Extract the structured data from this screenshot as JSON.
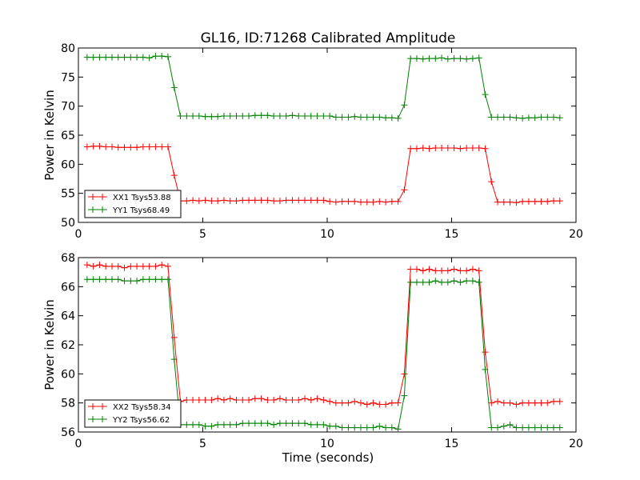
{
  "title": "GL16, ID:71268 Calibrated Amplitude",
  "chart_data": [
    {
      "type": "line",
      "title": "GL16, ID:71268 Calibrated Amplitude",
      "xlabel": "",
      "ylabel": "Power in Kelvin",
      "xlim": [
        0,
        20
      ],
      "ylim": [
        50,
        80
      ],
      "xticks": [
        0,
        5,
        10,
        15,
        20
      ],
      "yticks": [
        50,
        55,
        60,
        65,
        70,
        75,
        80
      ],
      "grid": false,
      "legend": "lower-left",
      "x": [
        0.35,
        0.6,
        0.85,
        1.1,
        1.35,
        1.6,
        1.85,
        2.1,
        2.35,
        2.6,
        2.85,
        3.1,
        3.35,
        3.6,
        3.85,
        4.1,
        4.35,
        4.6,
        4.85,
        5.1,
        5.35,
        5.6,
        5.85,
        6.1,
        6.35,
        6.6,
        6.85,
        7.1,
        7.35,
        7.6,
        7.85,
        8.1,
        8.35,
        8.6,
        8.85,
        9.1,
        9.35,
        9.6,
        9.85,
        10.1,
        10.35,
        10.6,
        10.85,
        11.1,
        11.35,
        11.6,
        11.85,
        12.1,
        12.35,
        12.6,
        12.85,
        13.1,
        13.35,
        13.6,
        13.85,
        14.1,
        14.35,
        14.6,
        14.85,
        15.1,
        15.35,
        15.6,
        15.85,
        16.1,
        16.35,
        16.6,
        16.85,
        17.1,
        17.35,
        17.6,
        17.85,
        18.1,
        18.35,
        18.6,
        18.85,
        19.1,
        19.35
      ],
      "series": [
        {
          "name": "XX1 Tsys53.88",
          "color": "#ff0000",
          "values": [
            63.0,
            63.1,
            63.1,
            63.0,
            63.0,
            62.9,
            62.9,
            62.9,
            62.9,
            63.0,
            63.0,
            63.0,
            63.0,
            63.0,
            58.1,
            53.7,
            53.7,
            53.8,
            53.7,
            53.8,
            53.7,
            53.7,
            53.8,
            53.7,
            53.7,
            53.8,
            53.8,
            53.8,
            53.8,
            53.8,
            53.7,
            53.7,
            53.8,
            53.8,
            53.8,
            53.8,
            53.8,
            53.8,
            53.8,
            53.6,
            53.5,
            53.6,
            53.6,
            53.6,
            53.5,
            53.5,
            53.5,
            53.6,
            53.5,
            53.6,
            53.6,
            55.6,
            62.7,
            62.7,
            62.8,
            62.7,
            62.8,
            62.8,
            62.8,
            62.8,
            62.7,
            62.8,
            62.8,
            62.8,
            62.7,
            57.0,
            53.5,
            53.5,
            53.5,
            53.4,
            53.6,
            53.6,
            53.6,
            53.6,
            53.6,
            53.7,
            53.7
          ]
        },
        {
          "name": "YY1 Tsys68.49",
          "color": "#008000",
          "values": [
            78.4,
            78.4,
            78.4,
            78.4,
            78.4,
            78.4,
            78.4,
            78.4,
            78.4,
            78.4,
            78.3,
            78.6,
            78.6,
            78.5,
            73.2,
            68.3,
            68.3,
            68.3,
            68.3,
            68.2,
            68.2,
            68.2,
            68.3,
            68.3,
            68.3,
            68.3,
            68.3,
            68.4,
            68.4,
            68.4,
            68.3,
            68.3,
            68.3,
            68.4,
            68.3,
            68.3,
            68.3,
            68.3,
            68.3,
            68.3,
            68.1,
            68.1,
            68.1,
            68.2,
            68.1,
            68.1,
            68.1,
            68.1,
            68.0,
            68.0,
            67.9,
            70.2,
            78.2,
            78.2,
            78.1,
            78.2,
            78.2,
            78.3,
            78.1,
            78.2,
            78.2,
            78.1,
            78.2,
            78.3,
            72.0,
            68.1,
            68.1,
            68.1,
            68.1,
            68.0,
            67.9,
            68.0,
            68.0,
            68.1,
            68.1,
            68.1,
            68.0
          ]
        }
      ]
    },
    {
      "type": "line",
      "title": "",
      "xlabel": "Time (seconds)",
      "ylabel": "Power in Kelvin",
      "xlim": [
        0,
        20
      ],
      "ylim": [
        56,
        68
      ],
      "xticks": [
        0,
        5,
        10,
        15,
        20
      ],
      "yticks": [
        56,
        58,
        60,
        62,
        64,
        66,
        68
      ],
      "grid": false,
      "legend": "lower-left",
      "x": [
        0.35,
        0.6,
        0.85,
        1.1,
        1.35,
        1.6,
        1.85,
        2.1,
        2.35,
        2.6,
        2.85,
        3.1,
        3.35,
        3.6,
        3.85,
        4.1,
        4.35,
        4.6,
        4.85,
        5.1,
        5.35,
        5.6,
        5.85,
        6.1,
        6.35,
        6.6,
        6.85,
        7.1,
        7.35,
        7.6,
        7.85,
        8.1,
        8.35,
        8.6,
        8.85,
        9.1,
        9.35,
        9.6,
        9.85,
        10.1,
        10.35,
        10.6,
        10.85,
        11.1,
        11.35,
        11.6,
        11.85,
        12.1,
        12.35,
        12.6,
        12.85,
        13.1,
        13.35,
        13.6,
        13.85,
        14.1,
        14.35,
        14.6,
        14.85,
        15.1,
        15.35,
        15.6,
        15.85,
        16.1,
        16.35,
        16.6,
        16.85,
        17.1,
        17.35,
        17.6,
        17.85,
        18.1,
        18.35,
        18.6,
        18.85,
        19.1,
        19.35
      ],
      "series": [
        {
          "name": "XX2 Tsys58.34",
          "color": "#ff0000",
          "values": [
            67.5,
            67.4,
            67.5,
            67.4,
            67.4,
            67.4,
            67.3,
            67.4,
            67.4,
            67.4,
            67.4,
            67.4,
            67.5,
            67.4,
            62.5,
            58.1,
            58.2,
            58.2,
            58.2,
            58.2,
            58.2,
            58.3,
            58.2,
            58.3,
            58.2,
            58.2,
            58.2,
            58.3,
            58.3,
            58.2,
            58.2,
            58.3,
            58.2,
            58.2,
            58.2,
            58.3,
            58.2,
            58.3,
            58.2,
            58.1,
            58.0,
            58.0,
            58.0,
            58.1,
            58.0,
            57.9,
            58.0,
            57.9,
            57.9,
            58.0,
            58.0,
            60.0,
            67.2,
            67.2,
            67.1,
            67.2,
            67.1,
            67.1,
            67.1,
            67.2,
            67.1,
            67.1,
            67.2,
            67.1,
            61.5,
            58.0,
            58.1,
            58.0,
            58.0,
            57.9,
            58.0,
            58.0,
            58.0,
            58.0,
            58.0,
            58.1,
            58.1
          ]
        },
        {
          "name": "YY2 Tsys56.62",
          "color": "#008000",
          "values": [
            66.5,
            66.5,
            66.5,
            66.5,
            66.5,
            66.5,
            66.4,
            66.4,
            66.4,
            66.5,
            66.5,
            66.5,
            66.5,
            66.5,
            61.0,
            56.5,
            56.5,
            56.5,
            56.5,
            56.4,
            56.4,
            56.5,
            56.5,
            56.5,
            56.5,
            56.6,
            56.6,
            56.6,
            56.6,
            56.6,
            56.5,
            56.6,
            56.6,
            56.6,
            56.6,
            56.6,
            56.5,
            56.5,
            56.5,
            56.4,
            56.4,
            56.3,
            56.3,
            56.3,
            56.3,
            56.3,
            56.3,
            56.4,
            56.3,
            56.3,
            56.2,
            58.5,
            66.3,
            66.3,
            66.3,
            66.3,
            66.4,
            66.3,
            66.3,
            66.4,
            66.3,
            66.4,
            66.4,
            66.3,
            60.3,
            56.3,
            56.3,
            56.4,
            56.5,
            56.3,
            56.3,
            56.3,
            56.3,
            56.3,
            56.3,
            56.3,
            56.3
          ]
        }
      ]
    }
  ]
}
